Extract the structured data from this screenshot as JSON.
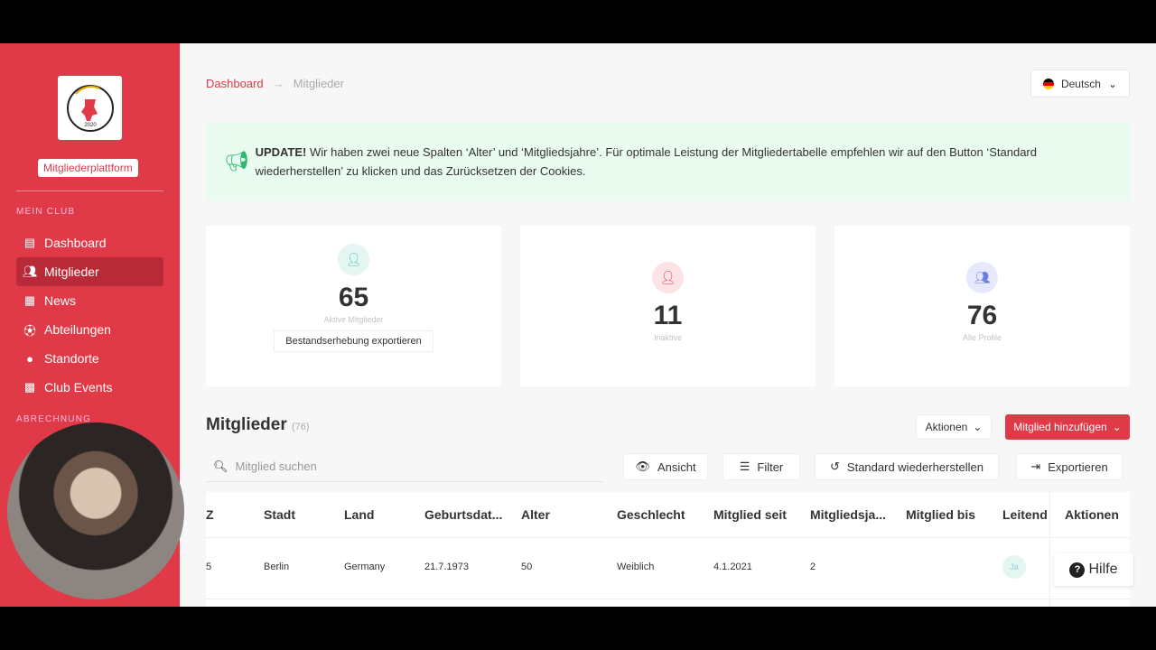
{
  "sidebar": {
    "logo_text": "SV BERLIN MITTE 2020",
    "platform": "Mitgliederplattform",
    "section1": "MEIN CLUB",
    "section2": "ABRECHNUNG",
    "items": [
      {
        "label": "Dashboard",
        "icon": "table-list-icon"
      },
      {
        "label": "Mitglieder",
        "icon": "users-icon",
        "active": true
      },
      {
        "label": "News",
        "icon": "newspaper-icon"
      },
      {
        "label": "Abteilungen",
        "icon": "football-icon"
      },
      {
        "label": "Standorte",
        "icon": "map-pin-icon"
      },
      {
        "label": "Club Events",
        "icon": "calendar-icon"
      }
    ]
  },
  "breadcrumb": {
    "home": "Dashboard",
    "sep": "→",
    "current": "Mitglieder"
  },
  "language": "Deutsch",
  "banner": {
    "strong": "UPDATE!",
    "text": " Wir haben zwei neue Spalten ‘Alter’ und ‘Mitgliedsjahre’. Für optimale Leistung der Mitgliedertabelle empfehlen wir auf den Button ‘Standard wiederherstellen’ zu klicken und das Zurücksetzen der Cookies."
  },
  "stats": [
    {
      "value": "65",
      "label": "Aktive Mitglieder",
      "button": "Bestandserhebung exportieren"
    },
    {
      "value": "11",
      "label": "Inaktive"
    },
    {
      "value": "76",
      "label": "Alle Profile"
    }
  ],
  "members": {
    "title": "Mitglieder",
    "count": "(76)",
    "actions": "Aktionen",
    "add": "Mitglied hinzufügen",
    "search_placeholder": "Mitglied suchen",
    "view": "Ansicht",
    "filter": "Filter",
    "reset": "Standard wiederherstellen",
    "export": "Exportieren"
  },
  "table": {
    "columns": [
      "Z",
      "Stadt",
      "Land",
      "Geburtsdat...",
      "Alter",
      "Geschlecht",
      "Mitglied seit",
      "Mitgliedsja...",
      "Mitglied bis",
      "Leitend",
      "Aktionen"
    ],
    "rows": [
      [
        "5",
        "Berlin",
        "Germany",
        "21.7.1973",
        "50",
        "Weiblich",
        "4.1.2021",
        "2",
        "",
        "Ja",
        ""
      ]
    ]
  },
  "help": "Hilfe",
  "colors": {
    "brand": "#e03a48",
    "success": "#2eb872"
  }
}
